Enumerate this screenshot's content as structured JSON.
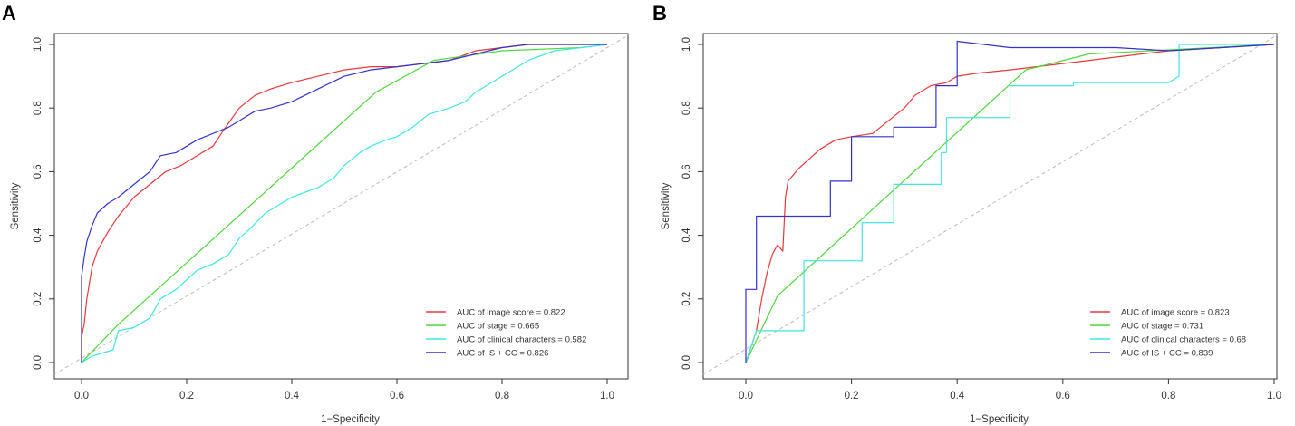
{
  "colors": {
    "red": "#e8383b",
    "green": "#4cd83a",
    "cyan": "#3ee6e6",
    "blue": "#3333cc",
    "diagonal": "#bbbbbb",
    "axis": "#333333"
  },
  "chart_data": [
    {
      "panel_label": "A",
      "type": "line",
      "xlabel": "1−Specificity",
      "ylabel": "Sensitivity",
      "xlim": [
        0,
        1
      ],
      "ylim": [
        0,
        1
      ],
      "xticks": [
        "0.0",
        "0.2",
        "0.4",
        "0.6",
        "0.8",
        "1.0"
      ],
      "yticks": [
        "0.0",
        "0.2",
        "0.4",
        "0.6",
        "0.8",
        "1.0"
      ],
      "legend_position": "bottom-right",
      "reference_line": "diagonal dashed",
      "series": [
        {
          "name": "AUC of image score = 0.822",
          "color": "#e8383b",
          "x": [
            0,
            0,
            0.005,
            0.01,
            0.02,
            0.03,
            0.05,
            0.07,
            0.1,
            0.13,
            0.16,
            0.19,
            0.22,
            0.25,
            0.27,
            0.3,
            0.33,
            0.36,
            0.4,
            0.45,
            0.5,
            0.55,
            0.6,
            0.65,
            0.7,
            0.75,
            0.8,
            0.85,
            0.9,
            1.0
          ],
          "y": [
            0,
            0.08,
            0.12,
            0.2,
            0.3,
            0.35,
            0.41,
            0.46,
            0.52,
            0.56,
            0.6,
            0.62,
            0.65,
            0.68,
            0.73,
            0.8,
            0.84,
            0.86,
            0.88,
            0.9,
            0.92,
            0.93,
            0.93,
            0.94,
            0.95,
            0.98,
            0.99,
            1.0,
            1.0,
            1.0
          ]
        },
        {
          "name": "AUC of stage = 0.665",
          "color": "#4cd83a",
          "x": [
            0,
            0.07,
            0.56,
            0.67,
            0.8,
            0.95,
            1.0
          ],
          "y": [
            0,
            0.12,
            0.85,
            0.95,
            0.98,
            0.99,
            1.0
          ]
        },
        {
          "name": "AUC of clinical characters = 0.582",
          "color": "#3ee6e6",
          "x": [
            0,
            0.02,
            0.06,
            0.07,
            0.1,
            0.13,
            0.15,
            0.18,
            0.2,
            0.22,
            0.25,
            0.28,
            0.3,
            0.32,
            0.35,
            0.38,
            0.4,
            0.45,
            0.48,
            0.5,
            0.53,
            0.55,
            0.58,
            0.6,
            0.63,
            0.66,
            0.7,
            0.73,
            0.75,
            0.78,
            0.8,
            0.85,
            0.9,
            0.95,
            1.0
          ],
          "y": [
            0,
            0.02,
            0.04,
            0.1,
            0.11,
            0.14,
            0.2,
            0.23,
            0.26,
            0.29,
            0.31,
            0.34,
            0.39,
            0.42,
            0.47,
            0.5,
            0.52,
            0.55,
            0.58,
            0.62,
            0.66,
            0.68,
            0.7,
            0.71,
            0.74,
            0.78,
            0.8,
            0.82,
            0.85,
            0.88,
            0.9,
            0.95,
            0.98,
            0.99,
            1.0
          ]
        },
        {
          "name": "AUC of IS + CC = 0.826",
          "color": "#3333cc",
          "x": [
            0,
            0,
            0.005,
            0.01,
            0.02,
            0.03,
            0.05,
            0.07,
            0.1,
            0.13,
            0.15,
            0.18,
            0.2,
            0.22,
            0.25,
            0.28,
            0.3,
            0.33,
            0.36,
            0.4,
            0.45,
            0.5,
            0.55,
            0.6,
            0.65,
            0.7,
            0.75,
            0.8,
            0.85,
            0.9,
            1.0
          ],
          "y": [
            0,
            0.27,
            0.33,
            0.38,
            0.43,
            0.47,
            0.5,
            0.52,
            0.56,
            0.6,
            0.65,
            0.66,
            0.68,
            0.7,
            0.72,
            0.74,
            0.76,
            0.79,
            0.8,
            0.82,
            0.86,
            0.9,
            0.92,
            0.93,
            0.94,
            0.95,
            0.97,
            0.99,
            1.0,
            1.0,
            1.0
          ]
        }
      ]
    },
    {
      "panel_label": "B",
      "type": "line",
      "xlabel": "1−Specificity",
      "ylabel": "Sensitivity",
      "xlim": [
        0,
        1
      ],
      "ylim": [
        0,
        1
      ],
      "xticks": [
        "0.0",
        "0.2",
        "0.4",
        "0.6",
        "0.8",
        "1.0"
      ],
      "yticks": [
        "0.0",
        "0.2",
        "0.4",
        "0.6",
        "0.8",
        "1.0"
      ],
      "legend_position": "bottom-right",
      "reference_line": "diagonal dashed",
      "series": [
        {
          "name": "AUC of image score = 0.823",
          "color": "#e8383b",
          "x": [
            0,
            0.02,
            0.03,
            0.04,
            0.05,
            0.06,
            0.07,
            0.075,
            0.08,
            0.09,
            0.1,
            0.12,
            0.14,
            0.17,
            0.2,
            0.24,
            0.27,
            0.3,
            0.32,
            0.35,
            0.38,
            0.4,
            0.44,
            0.5,
            0.55,
            0.6,
            0.65,
            0.7,
            0.75,
            0.8,
            0.9,
            1.0
          ],
          "y": [
            0,
            0.1,
            0.2,
            0.28,
            0.34,
            0.37,
            0.35,
            0.52,
            0.57,
            0.59,
            0.61,
            0.64,
            0.67,
            0.7,
            0.71,
            0.72,
            0.76,
            0.8,
            0.84,
            0.87,
            0.88,
            0.9,
            0.91,
            0.92,
            0.93,
            0.94,
            0.95,
            0.96,
            0.97,
            0.98,
            0.99,
            1.0
          ]
        },
        {
          "name": "AUC of stage = 0.731",
          "color": "#4cd83a",
          "x": [
            0,
            0.06,
            0.53,
            0.65,
            1.0
          ],
          "y": [
            0,
            0.21,
            0.92,
            0.97,
            1.0
          ]
        },
        {
          "name": "AUC of clinical characters = 0.68",
          "color": "#3ee6e6",
          "x": [
            0,
            0.02,
            0.11,
            0.11,
            0.22,
            0.22,
            0.28,
            0.28,
            0.37,
            0.37,
            0.38,
            0.38,
            0.5,
            0.5,
            0.62,
            0.62,
            0.8,
            0.82,
            0.82,
            0.9,
            1.0
          ],
          "y": [
            0,
            0.1,
            0.1,
            0.32,
            0.32,
            0.44,
            0.44,
            0.56,
            0.56,
            0.66,
            0.66,
            0.77,
            0.77,
            0.87,
            0.87,
            0.88,
            0.88,
            0.9,
            1.0,
            1.0,
            1.0
          ]
        },
        {
          "name": "AUC of IS + CC = 0.839",
          "color": "#3333cc",
          "x": [
            0,
            0,
            0.02,
            0.02,
            0.16,
            0.16,
            0.2,
            0.2,
            0.28,
            0.28,
            0.36,
            0.36,
            0.4,
            0.4,
            0.5,
            0.6,
            0.7,
            0.8,
            0.9,
            1.0
          ],
          "y": [
            0,
            0.23,
            0.23,
            0.46,
            0.46,
            0.57,
            0.57,
            0.71,
            0.71,
            0.74,
            0.74,
            0.87,
            0.87,
            1.01,
            0.99,
            0.99,
            0.99,
            0.98,
            0.99,
            1.0
          ]
        }
      ]
    }
  ]
}
